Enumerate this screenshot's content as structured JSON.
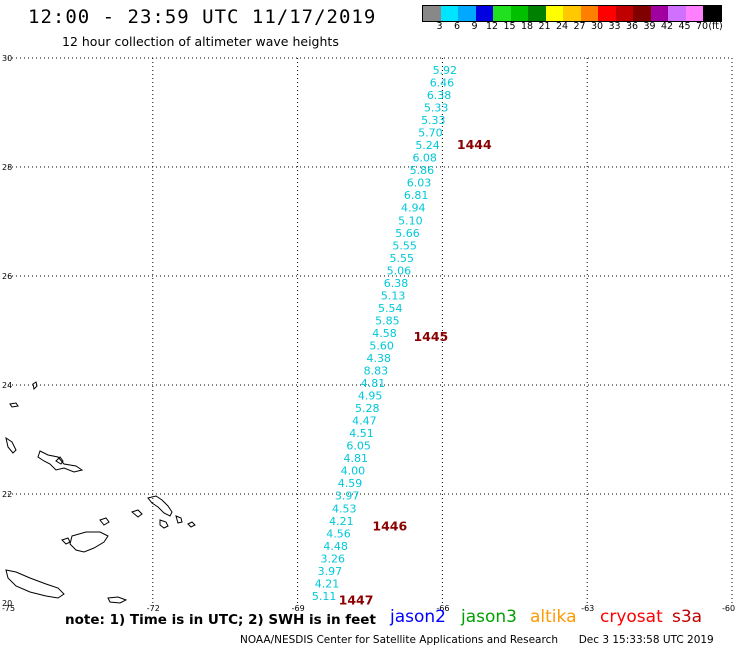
{
  "header": {
    "title": "12:00 - 23:59 UTC 11/17/2019",
    "subtitle": "12 hour collection of altimeter wave heights"
  },
  "colorbar": {
    "unit": "(ft)",
    "colors": [
      "#888888",
      "#00e5ff",
      "#00a8ff",
      "#0000e0",
      "#20e020",
      "#00c000",
      "#008000",
      "#ffff00",
      "#ffc800",
      "#ff8000",
      "#ff0000",
      "#c00000",
      "#800000",
      "#a000a0",
      "#d070ff",
      "#ff80ff",
      "#000000"
    ],
    "labels": [
      "3",
      "6",
      "9",
      "12",
      "15",
      "18",
      "21",
      "24",
      "27",
      "30",
      "33",
      "36",
      "39",
      "42",
      "45",
      "70"
    ]
  },
  "axes": {
    "lat_labels": [
      "30",
      "28",
      "26",
      "24",
      "22",
      "20"
    ],
    "lon_labels": [
      "-75",
      "-72",
      "-69",
      "-66",
      "-63",
      "-60"
    ]
  },
  "wave_values": [
    "5.92",
    "6.46",
    "6.38",
    "5.33",
    "5.33",
    "5.70",
    "5.24",
    "6.08",
    "5.86",
    "6.03",
    "6.81",
    "4.94",
    "5.10",
    "5.66",
    "5.55",
    "5.55",
    "5.06",
    "6.38",
    "5.13",
    "5.54",
    "5.85",
    "4.58",
    "5.60",
    "4.38",
    "8.83",
    "4.81",
    "4.95",
    "5.28",
    "4.47",
    "4.51",
    "6.05",
    "4.81",
    "4.00",
    "4.59",
    "3.97",
    "4.53",
    "4.21",
    "4.56",
    "4.48",
    "3.26",
    "3.97",
    "4.21",
    "5.11"
  ],
  "pass_labels": [
    "1444",
    "1445",
    "1446",
    "1447"
  ],
  "legend": {
    "note": "note: 1) Time is in UTC; 2) SWH is in feet",
    "satellites": [
      {
        "name": "jason2",
        "color": "#0000ff"
      },
      {
        "name": "jason3",
        "color": "#00a000"
      },
      {
        "name": "altika",
        "color": "#ff9900"
      },
      {
        "name": "cryosat",
        "color": "#ff0000"
      },
      {
        "name": "s3a",
        "color": "#c00000"
      }
    ]
  },
  "footer": {
    "credit": "NOAA/NESDIS Center for Satellite Applications and Research",
    "timestamp": "Dec  3 15:33:58 UTC 2019"
  }
}
